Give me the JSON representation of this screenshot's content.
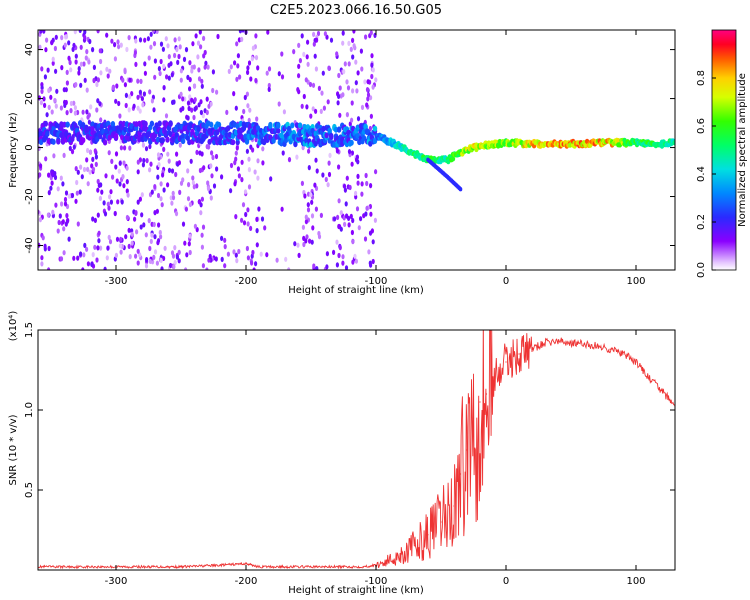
{
  "title": "C2E5.2023.066.16.50.G05",
  "chart_data": [
    {
      "type": "heatmap",
      "xlabel": "Height of straight line (km)",
      "ylabel": "Frequency (Hz)",
      "xlim": [
        -360,
        130
      ],
      "ylim": [
        -50,
        48
      ],
      "xticks": [
        -300,
        -200,
        -100,
        0,
        100
      ],
      "yticks": [
        -40,
        -20,
        0,
        20,
        40
      ],
      "colorbar": {
        "label": "Normalized spectral amplitude",
        "range": [
          0.0,
          1.0
        ],
        "ticks": [
          0.0,
          0.2,
          0.4,
          0.6,
          0.8
        ],
        "colormap": "rainbow"
      },
      "ridge": {
        "x": [
          -300,
          -250,
          -200,
          -150,
          -120,
          -100,
          -80,
          -60,
          -45,
          -35,
          -25,
          -15,
          0,
          20,
          50,
          80,
          100,
          120,
          130
        ],
        "frequency": [
          6,
          6,
          6,
          5,
          5,
          5,
          0,
          -5,
          -5,
          -2,
          0,
          1,
          2,
          1.5,
          1.5,
          2,
          2,
          1.5,
          2
        ],
        "amplitude": [
          0.2,
          0.2,
          0.25,
          0.3,
          0.25,
          0.3,
          0.5,
          0.6,
          0.55,
          0.7,
          0.8,
          0.75,
          0.7,
          0.85,
          0.9,
          0.85,
          0.6,
          0.6,
          0.5
        ]
      },
      "branch": {
        "x": [
          -60,
          -45,
          -35
        ],
        "frequency": [
          -5,
          -12,
          -17
        ]
      },
      "noise_region_x": [
        -360,
        -100
      ]
    },
    {
      "type": "line",
      "xlabel": "Height of straight line (km)",
      "ylabel": "SNR (10 * v/v)",
      "yscale_label": "(x10⁴)",
      "xlim": [
        -360,
        130
      ],
      "ylim": [
        0,
        1.5
      ],
      "xticks": [
        -300,
        -200,
        -100,
        0,
        100
      ],
      "yticks": [
        0.5,
        1.0,
        1.5
      ],
      "color": "#ee3333",
      "series": [
        {
          "x": [
            -360,
            -300,
            -250,
            -220,
            -200,
            -190,
            -150,
            -110,
            -100,
            -90,
            -80,
            -70,
            -60,
            -50,
            -40,
            -35,
            -30,
            -25,
            -20,
            -15,
            -10,
            -5,
            0,
            10,
            20,
            30,
            40,
            50,
            60,
            70,
            80,
            90,
            100,
            110,
            120,
            130
          ],
          "values": [
            0.02,
            0.02,
            0.02,
            0.03,
            0.04,
            0.02,
            0.02,
            0.02,
            0.03,
            0.06,
            0.1,
            0.15,
            0.22,
            0.3,
            0.4,
            0.6,
            0.75,
            0.95,
            1.05,
            1.1,
            1.2,
            1.25,
            1.3,
            1.35,
            1.38,
            1.42,
            1.43,
            1.42,
            1.41,
            1.4,
            1.38,
            1.35,
            1.3,
            1.2,
            1.12,
            1.02
          ]
        }
      ]
    }
  ]
}
